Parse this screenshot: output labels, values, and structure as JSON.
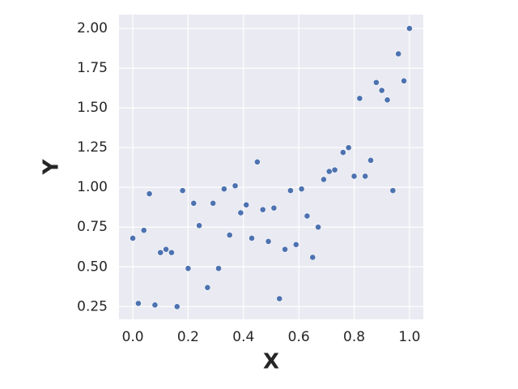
{
  "chart_data": {
    "type": "scatter",
    "xlabel": "X",
    "ylabel": "Y",
    "series": [
      {
        "color": "#4c72b0",
        "x": [
          0,
          0.02,
          0.04,
          0.06,
          0.08,
          0.1,
          0.12,
          0.14,
          0.16,
          0.18,
          0.2,
          0.22,
          0.24,
          0.27,
          0.29,
          0.31,
          0.33,
          0.35,
          0.37,
          0.39,
          0.41,
          0.43,
          0.45,
          0.47,
          0.49,
          0.51,
          0.53,
          0.55,
          0.57,
          0.59,
          0.61,
          0.63,
          0.65,
          0.67,
          0.69,
          0.71,
          0.73,
          0.76,
          0.78,
          0.8,
          0.82,
          0.84,
          0.86,
          0.88,
          0.9,
          0.92,
          0.94,
          0.96,
          0.98,
          1.0
        ],
        "values": [
          0.68,
          0.27,
          0.73,
          0.96,
          0.26,
          0.59,
          0.61,
          0.59,
          0.25,
          0.98,
          0.49,
          0.9,
          0.76,
          0.37,
          0.9,
          0.49,
          0.99,
          0.7,
          1.01,
          0.84,
          0.89,
          0.68,
          1.16,
          0.86,
          0.66,
          0.87,
          0.3,
          0.61,
          0.98,
          0.64,
          0.99,
          0.82,
          0.56,
          0.75,
          1.05,
          1.1,
          1.11,
          1.22,
          1.25,
          1.07,
          1.56,
          1.07,
          1.17,
          1.66,
          1.61,
          1.55,
          0.98,
          1.84,
          1.67,
          2.0
        ]
      }
    ],
    "xlim": [
      -0.05,
      1.05
    ],
    "ylim": [
      0.17,
      2.087
    ],
    "xticks": [
      {
        "value": 0,
        "label": "0.0"
      },
      {
        "value": 0.2,
        "label": "0.2"
      },
      {
        "value": 0.4,
        "label": "0.4"
      },
      {
        "value": 0.6,
        "label": "0.6"
      },
      {
        "value": 0.8,
        "label": "0.8"
      },
      {
        "value": 1,
        "label": "1.0"
      }
    ],
    "yticks": [
      {
        "value": 0.25,
        "label": "0.25"
      },
      {
        "value": 0.5,
        "label": "0.50"
      },
      {
        "value": 0.75,
        "label": "0.75"
      },
      {
        "value": 1,
        "label": "1.00"
      },
      {
        "value": 1.25,
        "label": "1.25"
      },
      {
        "value": 1.5,
        "label": "1.50"
      },
      {
        "value": 1.75,
        "label": "1.75"
      },
      {
        "value": 2,
        "label": "2.00"
      }
    ],
    "grid": true
  }
}
